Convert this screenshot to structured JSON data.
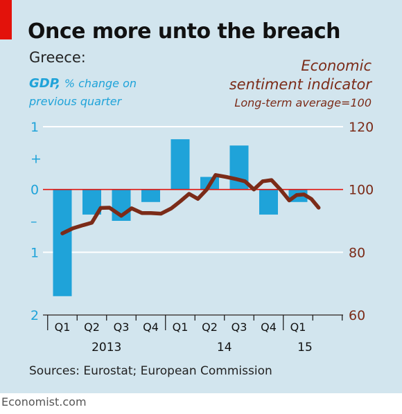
{
  "title": "Once more unto the breach",
  "subtitle": "Greece:",
  "left_axis_label": {
    "series_name": "GDP,",
    "unit_line1": "% change on",
    "unit_line2": "previous quarter"
  },
  "right_axis_label": {
    "line1": "Economic",
    "line2": "sentiment indicator",
    "line3": "Long-term average=100"
  },
  "source": "Sources: Eurostat; European Commission",
  "footer": "Economist.com",
  "colors": {
    "bars": "#1fa3d9",
    "line": "#7b2b18",
    "zero_line": "#e3120b",
    "background": "#d2e5ee"
  },
  "chart_data": {
    "type": "bar",
    "categories": [
      "Q1",
      "Q2",
      "Q3",
      "Q4",
      "Q1",
      "Q2",
      "Q3",
      "Q4",
      "Q1"
    ],
    "year_labels": [
      {
        "label": "2013",
        "start": 0,
        "end": 3
      },
      {
        "label": "14",
        "start": 4,
        "end": 7
      },
      {
        "label": "15",
        "start": 8,
        "end": 8
      }
    ],
    "x_axis_end": "Q2 2015",
    "series": [
      {
        "name": "GDP, % change on previous quarter",
        "type": "bar",
        "axis": "left",
        "values": [
          -1.7,
          -0.4,
          -0.5,
          -0.2,
          0.8,
          0.2,
          0.7,
          -0.4,
          -0.2
        ]
      },
      {
        "name": "Economic sentiment indicator",
        "type": "line",
        "axis": "right",
        "points": [
          [
            0.0,
            86.0
          ],
          [
            0.35,
            87.6
          ],
          [
            0.7,
            88.6
          ],
          [
            1.0,
            89.4
          ],
          [
            1.3,
            94.1
          ],
          [
            1.6,
            94.2
          ],
          [
            2.0,
            91.6
          ],
          [
            2.35,
            94.0
          ],
          [
            2.7,
            92.5
          ],
          [
            3.0,
            92.5
          ],
          [
            3.35,
            92.3
          ],
          [
            3.7,
            94.0
          ],
          [
            4.0,
            96.2
          ],
          [
            4.3,
            98.6
          ],
          [
            4.6,
            97.0
          ],
          [
            4.9,
            100.0
          ],
          [
            5.2,
            104.6
          ],
          [
            5.55,
            104.0
          ],
          [
            5.9,
            103.3
          ],
          [
            6.2,
            102.6
          ],
          [
            6.5,
            100.0
          ],
          [
            6.8,
            102.6
          ],
          [
            7.1,
            103.0
          ],
          [
            7.4,
            100.0
          ],
          [
            7.7,
            96.5
          ],
          [
            7.95,
            98.2
          ],
          [
            8.2,
            98.4
          ],
          [
            8.45,
            97.0
          ],
          [
            8.7,
            94.2
          ]
        ]
      }
    ],
    "left_axis": {
      "ylim": [
        -2,
        1
      ],
      "ticks": [
        {
          "value": 1,
          "label": "1"
        },
        {
          "value": 0.5,
          "label": "+"
        },
        {
          "value": 0,
          "label": "0"
        },
        {
          "value": -0.5,
          "label": "–"
        },
        {
          "value": -1,
          "label": "1"
        },
        {
          "value": -2,
          "label": "2"
        }
      ]
    },
    "right_axis": {
      "ylim": [
        60,
        120
      ],
      "ticks": [
        120,
        100,
        80,
        60
      ]
    },
    "gridlines": [
      1,
      -1,
      -2
    ],
    "zero_line": 0
  }
}
